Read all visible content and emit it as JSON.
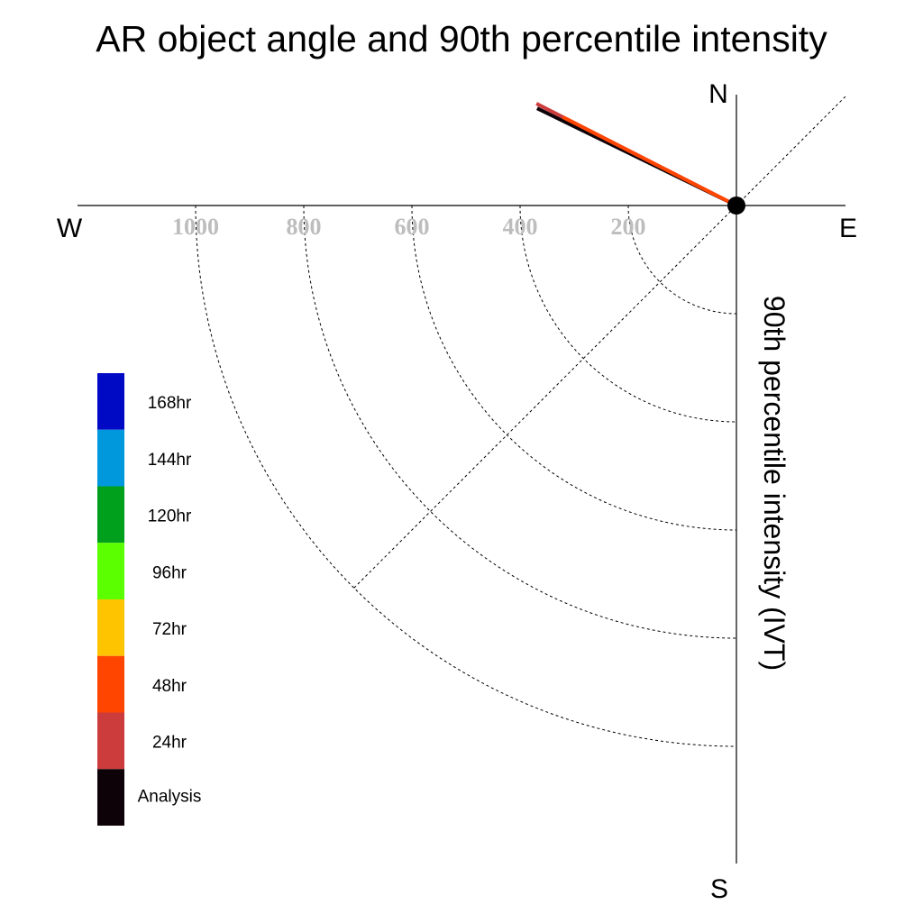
{
  "chart_data": {
    "type": "polar-vector",
    "title": "AR object angle and 90th percentile intensity",
    "ylabel": "90th percentile intensity (IVT)",
    "compass": {
      "north": "N",
      "east": "E",
      "south": "S",
      "west": "W"
    },
    "radial_ticks": [
      200,
      400,
      600,
      800,
      1000
    ],
    "rlim": [
      0,
      1200
    ],
    "legend_placement": "left",
    "series": [
      {
        "name": "Analysis",
        "color": "#0d0208",
        "angle_deg": 296,
        "intensity": 410
      },
      {
        "name": "24hr",
        "color": "#cd3c3c",
        "angle_deg": 297,
        "intensity": 415
      },
      {
        "name": "48hr",
        "color": "#ff4500",
        "angle_deg": 297,
        "intensity": 360
      }
    ],
    "legend_items": [
      {
        "label": "168hr",
        "color": "#0009c4"
      },
      {
        "label": "144hr",
        "color": "#0098dd"
      },
      {
        "label": "120hr",
        "color": "#00a01c"
      },
      {
        "label": "96hr",
        "color": "#5bff00"
      },
      {
        "label": "72hr",
        "color": "#ffc400"
      },
      {
        "label": "48hr",
        "color": "#ff4500"
      },
      {
        "label": "24hr",
        "color": "#cd3c3c"
      },
      {
        "label": "Analysis",
        "color": "#0d0208"
      }
    ]
  }
}
